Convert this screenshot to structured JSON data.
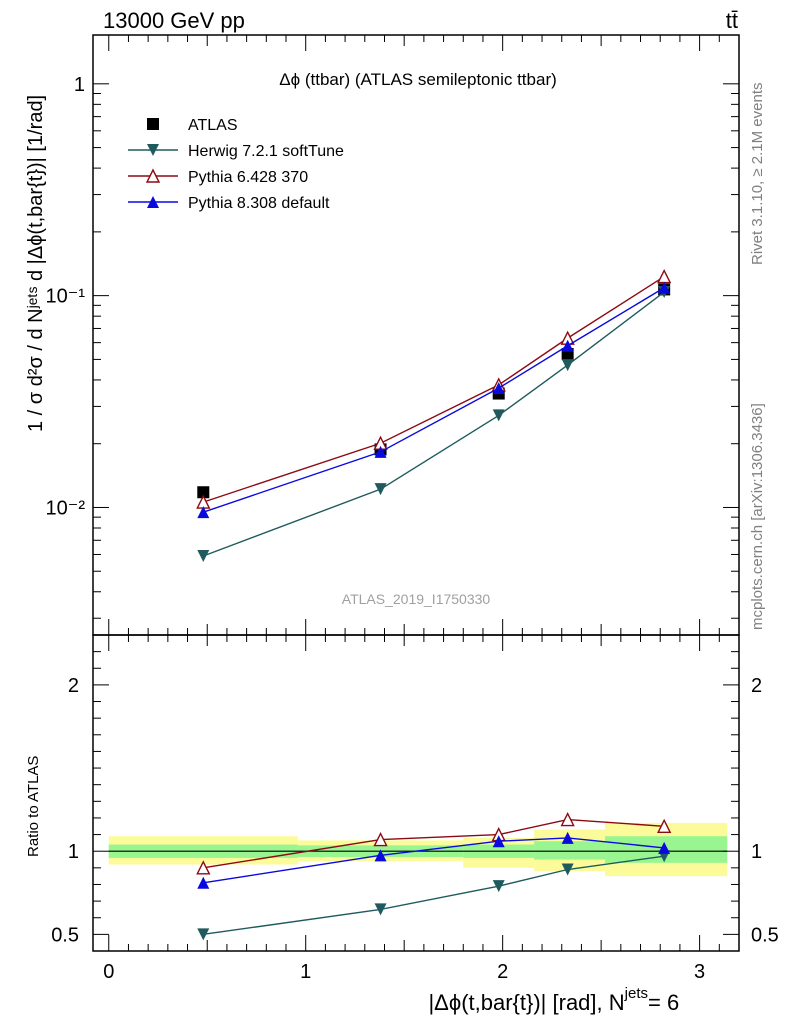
{
  "header": {
    "left": "13000 GeV pp",
    "right": "tt̄"
  },
  "side_labels": {
    "rivet": "Rivet 3.1.10, ≥ 2.1M events",
    "mcplots": "mcplots.cern.ch [arXiv:1306.3436]"
  },
  "colors": {
    "atlas": "#000000",
    "herwig": "#1f5b5e",
    "pythia6": "#8b0a14",
    "pythia8": "#0a0adf",
    "band_inner": "#99f58f",
    "band_outer": "#fbfc99"
  },
  "chart_data": [
    {
      "type": "line",
      "panel": "main",
      "title": "Δϕ (ttbar) (ATLAS semileptonic ttbar)",
      "ylabel": "1 / σ d²σ / d Nʲᵉᵗˢ d |Δϕ(t,bar{t})| [1/rad]",
      "watermark": "ATLAS_2019_I1750330",
      "yscale": "log",
      "ylim": [
        0.0025,
        1.7
      ],
      "xlim": [
        -0.08,
        3.2
      ],
      "ytick_labels": [
        "10⁻²",
        "10⁻¹",
        "1"
      ],
      "legend_position": "top-left",
      "series": [
        {
          "name": "ATLAS",
          "marker": "square",
          "x": [
            0.48,
            1.38,
            1.98,
            2.33,
            2.82
          ],
          "y": [
            0.0118,
            0.0188,
            0.0345,
            0.053,
            0.107
          ]
        },
        {
          "name": "Herwig 7.2.1 softTune",
          "marker": "triangle-down",
          "x": [
            0.48,
            1.38,
            1.98,
            2.33,
            2.82
          ],
          "y": [
            0.0059,
            0.0122,
            0.0272,
            0.047,
            0.104
          ]
        },
        {
          "name": "Pythia 6.428 370",
          "marker": "triangle-up-open",
          "x": [
            0.48,
            1.38,
            1.98,
            2.33,
            2.82
          ],
          "y": [
            0.0106,
            0.0201,
            0.0379,
            0.063,
            0.123
          ]
        },
        {
          "name": "Pythia 8.308 default",
          "marker": "triangle-up",
          "x": [
            0.48,
            1.38,
            1.98,
            2.33,
            2.82
          ],
          "y": [
            0.0095,
            0.0183,
            0.0366,
            0.058,
            0.109
          ]
        }
      ]
    },
    {
      "type": "line",
      "panel": "ratio",
      "ylabel": "Ratio to ATLAS",
      "xlabel": "|Δϕ(t,bar{t})| [rad], N",
      "xlabel_sup": "jets",
      "xlabel_suffix": " = 6",
      "ylim": [
        0.4,
        2.3
      ],
      "xlim": [
        -0.08,
        3.2
      ],
      "xtick_labels": [
        "0",
        "1",
        "2",
        "3"
      ],
      "ytick_labels": [
        "0.5",
        "1",
        "2"
      ],
      "bands": [
        {
          "x0": 0.0,
          "x1": 0.96,
          "inner": [
            0.96,
            1.04
          ],
          "outer": [
            0.92,
            1.09
          ]
        },
        {
          "x0": 0.96,
          "x1": 1.8,
          "inner": [
            0.965,
            1.035
          ],
          "outer": [
            0.94,
            1.065
          ]
        },
        {
          "x0": 1.8,
          "x1": 2.16,
          "inner": [
            0.96,
            1.04
          ],
          "outer": [
            0.9,
            1.08
          ]
        },
        {
          "x0": 2.16,
          "x1": 2.52,
          "inner": [
            0.95,
            1.06
          ],
          "outer": [
            0.88,
            1.13
          ]
        },
        {
          "x0": 2.52,
          "x1": 3.14,
          "inner": [
            0.93,
            1.09
          ],
          "outer": [
            0.85,
            1.17
          ]
        }
      ],
      "series": [
        {
          "name": "Herwig 7.2.1 softTune",
          "marker": "triangle-down",
          "x": [
            0.48,
            1.38,
            1.98,
            2.33,
            2.82
          ],
          "y": [
            0.5,
            0.65,
            0.79,
            0.89,
            0.97
          ]
        },
        {
          "name": "Pythia 6.428 370",
          "marker": "triangle-up-open",
          "x": [
            0.48,
            1.38,
            1.98,
            2.33,
            2.82
          ],
          "y": [
            0.9,
            1.07,
            1.1,
            1.19,
            1.15
          ]
        },
        {
          "name": "Pythia 8.308 default",
          "marker": "triangle-up",
          "x": [
            0.48,
            1.38,
            1.98,
            2.33,
            2.82
          ],
          "y": [
            0.81,
            0.975,
            1.06,
            1.08,
            1.02
          ]
        }
      ]
    }
  ]
}
